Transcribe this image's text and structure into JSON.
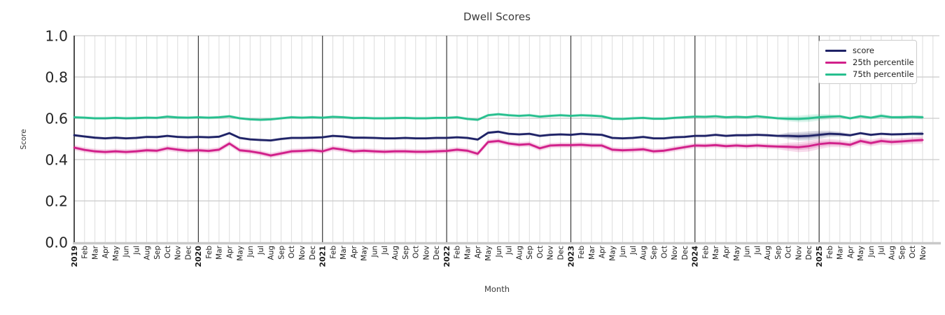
{
  "chart": {
    "chart_data": {
      "type": "line",
      "title": "Dwell Scores",
      "xlabel": "Month",
      "ylabel": "Score",
      "ylim": [
        0.0,
        1.0
      ],
      "yticks": [
        0.0,
        0.2,
        0.4,
        0.6,
        0.8,
        1.0
      ],
      "grid": true,
      "legend_position": "upper right",
      "x_labels": [
        "2019",
        "Feb",
        "Mar",
        "Apr",
        "May",
        "Jun",
        "Jul",
        "Aug",
        "Sep",
        "Oct",
        "Nov",
        "Dec",
        "2020",
        "Feb",
        "Mar",
        "Apr",
        "May",
        "Jun",
        "Jul",
        "Aug",
        "Sep",
        "Oct",
        "Nov",
        "Dec",
        "2021",
        "Feb",
        "Mar",
        "Apr",
        "May",
        "Jun",
        "Jul",
        "Aug",
        "Sep",
        "Oct",
        "Nov",
        "Dec",
        "2022",
        "Feb",
        "Mar",
        "Apr",
        "May",
        "Jun",
        "Jul",
        "Aug",
        "Sep",
        "Oct",
        "Nov",
        "Dec",
        "2023",
        "Feb",
        "Mar",
        "Apr",
        "May",
        "Jun",
        "Jul",
        "Aug",
        "Sep",
        "Oct",
        "Nov",
        "Dec",
        "2024",
        "Feb",
        "Mar",
        "Apr",
        "May",
        "Jun",
        "Jul",
        "Aug",
        "Sep",
        "Oct",
        "Nov",
        "Dec",
        "2025",
        "Feb",
        "Mar",
        "Apr",
        "May",
        "Jun",
        "Jul",
        "Aug",
        "Sep",
        "Oct",
        "Nov"
      ],
      "series": [
        {
          "name": "score",
          "color": "#1e2266",
          "band_halfwidth": 0.007,
          "band_overrides": {
            "69": 0.016,
            "70": 0.02,
            "71": 0.022,
            "72": 0.02,
            "73": 0.015,
            "74": 0.012,
            "82": 0.011
          },
          "values": [
            0.518,
            0.512,
            0.506,
            0.503,
            0.506,
            0.503,
            0.505,
            0.51,
            0.509,
            0.515,
            0.51,
            0.508,
            0.51,
            0.508,
            0.511,
            0.528,
            0.505,
            0.498,
            0.495,
            0.493,
            0.5,
            0.505,
            0.505,
            0.506,
            0.508,
            0.515,
            0.512,
            0.506,
            0.506,
            0.505,
            0.503,
            0.503,
            0.505,
            0.503,
            0.503,
            0.505,
            0.505,
            0.508,
            0.505,
            0.497,
            0.53,
            0.535,
            0.525,
            0.522,
            0.525,
            0.515,
            0.52,
            0.522,
            0.52,
            0.525,
            0.522,
            0.52,
            0.505,
            0.503,
            0.505,
            0.51,
            0.503,
            0.503,
            0.508,
            0.51,
            0.515,
            0.515,
            0.52,
            0.515,
            0.518,
            0.518,
            0.52,
            0.518,
            0.515,
            0.515,
            0.513,
            0.515,
            0.52,
            0.525,
            0.523,
            0.518,
            0.528,
            0.52,
            0.525,
            0.522,
            0.523,
            0.525,
            0.525
          ]
        },
        {
          "name": "25th percentile",
          "color": "#d1208a",
          "band_halfwidth": 0.013,
          "band_overrides": {
            "69": 0.02,
            "70": 0.024,
            "71": 0.026,
            "72": 0.024,
            "73": 0.02,
            "74": 0.018,
            "75": 0.016,
            "76": 0.016,
            "77": 0.016,
            "78": 0.017,
            "79": 0.016,
            "80": 0.016,
            "81": 0.016,
            "82": 0.018
          },
          "values": [
            0.458,
            0.447,
            0.44,
            0.437,
            0.44,
            0.437,
            0.44,
            0.445,
            0.443,
            0.455,
            0.448,
            0.443,
            0.445,
            0.442,
            0.448,
            0.478,
            0.445,
            0.44,
            0.432,
            0.42,
            0.43,
            0.44,
            0.442,
            0.445,
            0.44,
            0.455,
            0.448,
            0.44,
            0.443,
            0.44,
            0.438,
            0.44,
            0.44,
            0.438,
            0.438,
            0.44,
            0.442,
            0.448,
            0.443,
            0.428,
            0.485,
            0.49,
            0.478,
            0.472,
            0.475,
            0.455,
            0.468,
            0.47,
            0.47,
            0.472,
            0.468,
            0.468,
            0.448,
            0.445,
            0.447,
            0.45,
            0.44,
            0.443,
            0.452,
            0.46,
            0.468,
            0.467,
            0.47,
            0.465,
            0.468,
            0.465,
            0.468,
            0.465,
            0.463,
            0.462,
            0.46,
            0.465,
            0.475,
            0.48,
            0.478,
            0.472,
            0.49,
            0.48,
            0.49,
            0.485,
            0.488,
            0.492,
            0.495
          ]
        },
        {
          "name": "75th percentile",
          "color": "#26bf8e",
          "band_halfwidth": 0.008,
          "band_overrides": {
            "69": 0.013,
            "70": 0.016,
            "71": 0.018,
            "72": 0.016,
            "73": 0.012,
            "78": 0.011,
            "80": 0.01,
            "82": 0.011
          },
          "values": [
            0.605,
            0.603,
            0.6,
            0.6,
            0.602,
            0.6,
            0.601,
            0.603,
            0.602,
            0.608,
            0.604,
            0.603,
            0.605,
            0.603,
            0.605,
            0.61,
            0.6,
            0.595,
            0.593,
            0.595,
            0.6,
            0.605,
            0.603,
            0.605,
            0.603,
            0.607,
            0.605,
            0.601,
            0.602,
            0.6,
            0.6,
            0.601,
            0.602,
            0.6,
            0.6,
            0.602,
            0.602,
            0.605,
            0.597,
            0.593,
            0.615,
            0.62,
            0.615,
            0.612,
            0.615,
            0.608,
            0.612,
            0.615,
            0.612,
            0.615,
            0.613,
            0.61,
            0.598,
            0.597,
            0.6,
            0.602,
            0.598,
            0.598,
            0.602,
            0.605,
            0.608,
            0.607,
            0.61,
            0.605,
            0.607,
            0.605,
            0.61,
            0.605,
            0.6,
            0.598,
            0.597,
            0.6,
            0.605,
            0.608,
            0.61,
            0.6,
            0.61,
            0.603,
            0.612,
            0.605,
            0.605,
            0.607,
            0.605
          ]
        }
      ],
      "colors": {
        "grid_minor": "#dcdcdc",
        "grid_major": "#cbcbcb",
        "year_line": "#3a3a3a",
        "bottom_spine": "#c9c9c9",
        "tick_text": "#262626",
        "title_text": "#3a3a3a"
      }
    }
  }
}
